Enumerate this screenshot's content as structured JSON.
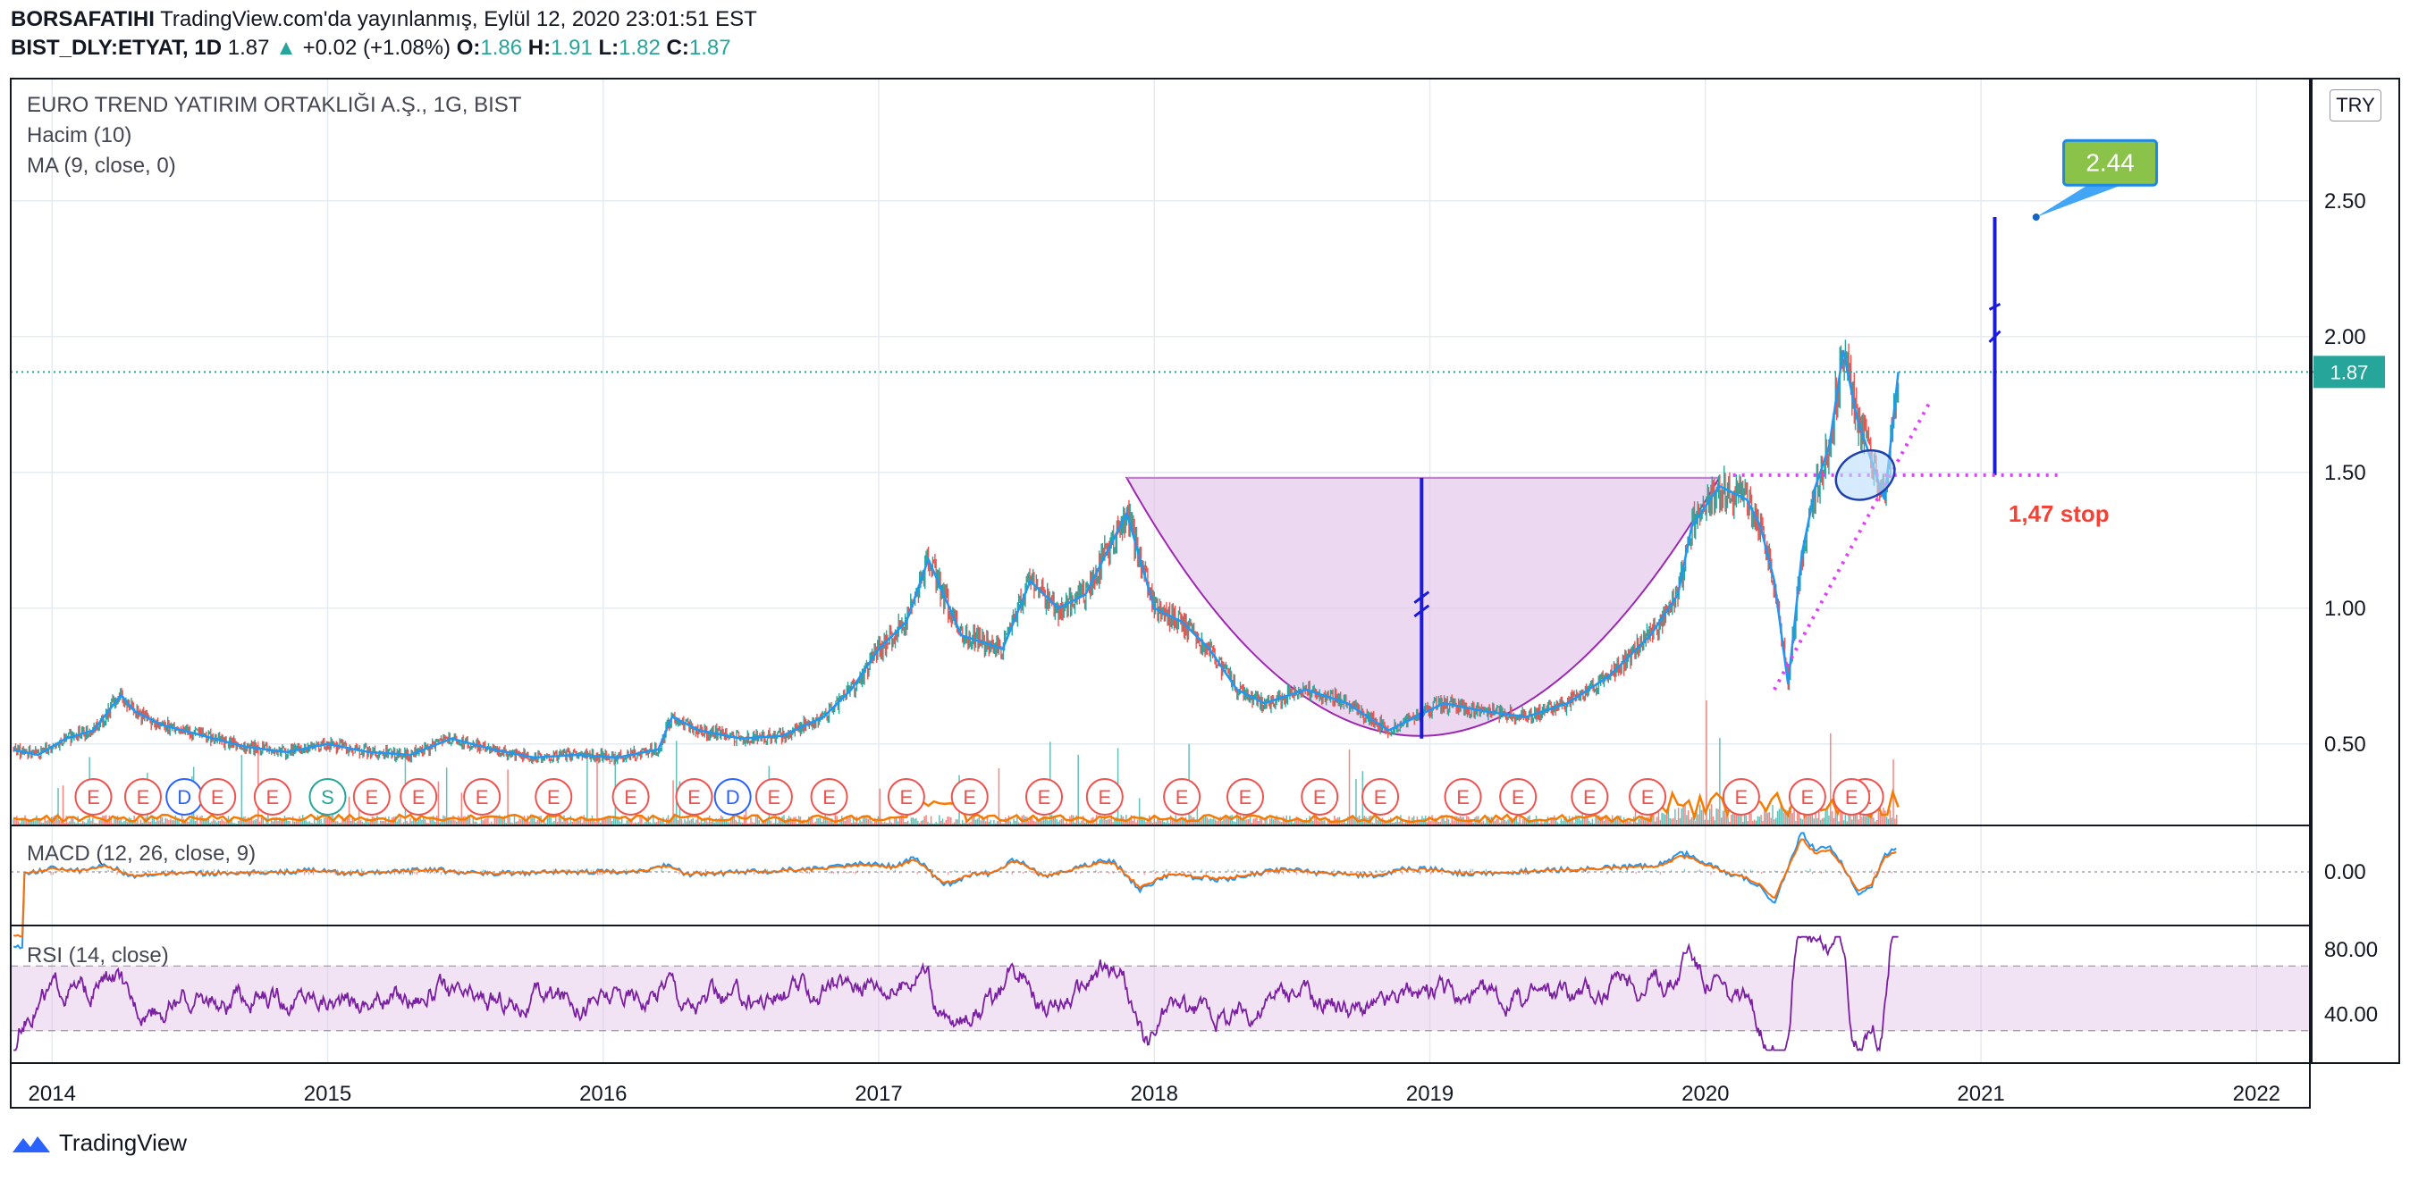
{
  "header": {
    "author": "BORSAFATIHI",
    "published": "TradingView.com'da yayınlanmış, Eylül 12, 2020 23:01:51 EST",
    "symbol": "BIST_DLY:ETYAT, 1D",
    "last": "1.87",
    "change_arrow": "▲",
    "change": "+0.02 (+1.08%)",
    "o_label": "O:",
    "o": "1.86",
    "h_label": "H:",
    "h": "1.91",
    "l_label": "L:",
    "l": "1.82",
    "c_label": "C:",
    "c": "1.87"
  },
  "legend": {
    "title": "EURO TREND YATIRIM ORTAKLIĞI A.Ş., 1G, BIST",
    "volume": "Hacim (10)",
    "ma": "MA (9, close, 0)",
    "macd": "MACD (12, 26, close, 9)",
    "rsi": "RSI (14, close)"
  },
  "currency_badge": "TRY",
  "footer": {
    "brand": "TradingView"
  },
  "colors": {
    "up": "#26a69a",
    "down": "#ef5350",
    "ma": "#2196f3",
    "volume": "#f57c00",
    "cup_fill": "#e1bee7",
    "annotation_blue": "#1a1adb",
    "magenta": "#e040fb",
    "rsi": "#7b1fa2",
    "target_green": "#8bc34a",
    "stop_red": "#f44336"
  },
  "annotations": {
    "target_label": "2.44",
    "stop_label": "1,47 stop",
    "current_price_label": "1.87"
  },
  "event_markers": [
    "E",
    "E",
    "D",
    "E",
    "E",
    "S",
    "E",
    "E",
    "E",
    "E",
    "E",
    "E",
    "D",
    "E",
    "E",
    "E",
    "E",
    "E",
    "E",
    "E",
    "E",
    "E",
    "E",
    "E",
    "E",
    "E",
    "E",
    "E",
    "E",
    "E",
    "E"
  ],
  "chart_data": [
    {
      "type": "line",
      "title": "EURO TREND YATIRIM ORTAKLIĞI A.Ş., 1G, BIST",
      "x_ticks": [
        "2014",
        "2015",
        "2016",
        "2017",
        "2018",
        "2019",
        "2020",
        "2021",
        "2022"
      ],
      "y_ticks": [
        "0.50",
        "1.00",
        "1.50",
        "2.00",
        "2.50"
      ],
      "ylim": [
        0.2,
        2.95
      ],
      "xlim": [
        2013.85,
        2022.2
      ],
      "series": [
        {
          "x": [
            2013.85,
            2013.95,
            2014.05,
            2014.15,
            2014.25,
            2014.3,
            2014.4,
            2014.55,
            2014.7,
            2014.85,
            2015.0,
            2015.15,
            2015.3,
            2015.45,
            2015.6,
            2015.75,
            2015.9,
            2016.05,
            2016.2,
            2016.25,
            2016.35,
            2016.5,
            2016.65,
            2016.8,
            2016.9,
            2017.0,
            2017.1,
            2017.18,
            2017.3,
            2017.45,
            2017.55,
            2017.65,
            2017.75,
            2017.85,
            2017.9,
            2018.0,
            2018.1,
            2018.2,
            2018.3,
            2018.4,
            2018.55,
            2018.7,
            2018.85,
            2018.95,
            2019.05,
            2019.2,
            2019.35,
            2019.5,
            2019.65,
            2019.8,
            2019.9,
            2019.95,
            2020.05,
            2020.15,
            2020.2,
            2020.25,
            2020.3,
            2020.35,
            2020.4,
            2020.45,
            2020.5,
            2020.55,
            2020.6,
            2020.65,
            2020.7
          ],
          "values": [
            0.48,
            0.46,
            0.52,
            0.55,
            0.68,
            0.62,
            0.57,
            0.53,
            0.49,
            0.47,
            0.5,
            0.47,
            0.46,
            0.52,
            0.48,
            0.45,
            0.46,
            0.45,
            0.48,
            0.6,
            0.55,
            0.52,
            0.53,
            0.6,
            0.7,
            0.85,
            0.95,
            1.18,
            0.9,
            0.85,
            1.1,
            1.0,
            1.05,
            1.25,
            1.35,
            1.0,
            0.95,
            0.85,
            0.7,
            0.65,
            0.7,
            0.65,
            0.55,
            0.6,
            0.65,
            0.62,
            0.6,
            0.65,
            0.75,
            0.9,
            1.05,
            1.3,
            1.45,
            1.4,
            1.3,
            1.1,
            0.72,
            1.2,
            1.45,
            1.6,
            1.95,
            1.7,
            1.55,
            1.4,
            1.87
          ]
        }
      ]
    },
    {
      "type": "line",
      "title": "MACD (12, 26, close, 9)",
      "y_ticks": [
        "0.00"
      ]
    },
    {
      "type": "line",
      "title": "RSI (14, close)",
      "y_ticks": [
        "80.00",
        "40.00"
      ],
      "ylim": [
        10,
        95
      ]
    }
  ]
}
